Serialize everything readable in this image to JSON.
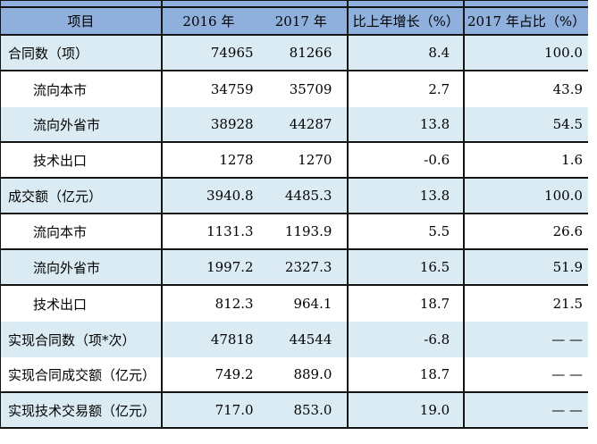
{
  "colors": {
    "header_bg": "#8fb0dc",
    "shaded_row_bg": "#daebf3",
    "plain_row_bg": "#ffffff",
    "border": "#141414"
  },
  "table": {
    "header": {
      "item": "项目",
      "y2016": "2016 年",
      "y2017": "2017 年",
      "growth": "比上年增长（%）",
      "share": "2017 年占比（%）"
    },
    "rows": [
      {
        "item": "合同数（项）",
        "indent": false,
        "v2016": "74965",
        "v2017": "81266",
        "growth": "8.4",
        "share": "100.0",
        "shaded": true,
        "hline": true
      },
      {
        "item": "流向本市",
        "indent": true,
        "v2016": "34759",
        "v2017": "35709",
        "growth": "2.7",
        "share": "43.9",
        "shaded": false,
        "hline": false
      },
      {
        "item": "流向外省市",
        "indent": true,
        "v2016": "38928",
        "v2017": "44287",
        "growth": "13.8",
        "share": "54.5",
        "shaded": true,
        "hline": true
      },
      {
        "item": "技术出口",
        "indent": true,
        "v2016": "1278",
        "v2017": "1270",
        "growth": "-0.6",
        "share": "1.6",
        "shaded": false,
        "hline": true
      },
      {
        "item": "成交额（亿元）",
        "indent": false,
        "v2016": "3940.8",
        "v2017": "4485.3",
        "growth": "13.8",
        "share": "100.0",
        "shaded": true,
        "hline": true
      },
      {
        "item": "流向本市",
        "indent": true,
        "v2016": "1131.3",
        "v2017": "1193.9",
        "growth": "5.5",
        "share": "26.6",
        "shaded": false,
        "hline": true
      },
      {
        "item": "流向外省市",
        "indent": true,
        "v2016": "1997.2",
        "v2017": "2327.3",
        "growth": "16.5",
        "share": "51.9",
        "shaded": true,
        "hline": true
      },
      {
        "item": "技术出口",
        "indent": true,
        "v2016": "812.3",
        "v2017": "964.1",
        "growth": "18.7",
        "share": "21.5",
        "shaded": false,
        "hline": false
      },
      {
        "item": "实现合同数（项*次）",
        "indent": false,
        "v2016": "47818",
        "v2017": "44544",
        "growth": "-6.8",
        "share": "— —",
        "shaded": true,
        "hline": false
      },
      {
        "item": "实现合同成交额（亿元）",
        "indent": false,
        "v2016": "749.2",
        "v2017": "889.0",
        "growth": "18.7",
        "share": "— —",
        "shaded": false,
        "hline": true
      },
      {
        "item": "实现技术交易额（亿元）",
        "indent": false,
        "v2016": "717.0",
        "v2017": "853.0",
        "growth": "19.0",
        "share": "— —",
        "shaded": true,
        "hline": true
      }
    ]
  }
}
